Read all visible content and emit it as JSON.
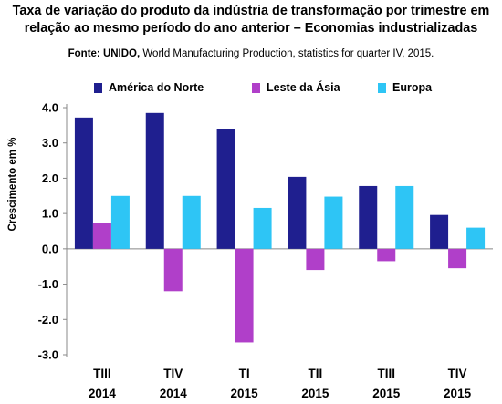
{
  "title": {
    "line1": "Taxa de variação do produto da indústria de transformação por trimestre em",
    "line2": "relação ao mesmo período do ano anterior – Economias industrializadas"
  },
  "source": {
    "lead": "Fonte: UNIDO,",
    "rest": " World Manufacturing  Production,  statistics for quarter IV, 2015."
  },
  "colors": {
    "america_do_norte": "#1f1f8f",
    "leste_da_asia": "#b03fc9",
    "europa": "#2ec5f5"
  },
  "chart_data": {
    "type": "bar",
    "ylabel": "Crescimento em %",
    "ylim": [
      -3.0,
      4.0
    ],
    "yticks": [
      "-3.0",
      "-2.0",
      "-1.0",
      "0.0",
      "1.0",
      "2.0",
      "3.0",
      "4.0"
    ],
    "ytick_values": [
      -3.0,
      -2.0,
      -1.0,
      0.0,
      1.0,
      2.0,
      3.0,
      4.0
    ],
    "legend_position": "top",
    "grid": false,
    "categories": [
      {
        "line1": "TIII",
        "line2": "2014"
      },
      {
        "line1": "TIV",
        "line2": "2014"
      },
      {
        "line1": "TI",
        "line2": "2015"
      },
      {
        "line1": "TII",
        "line2": "2015"
      },
      {
        "line1": "TIII",
        "line2": "2015"
      },
      {
        "line1": "TIV",
        "line2": "2015"
      }
    ],
    "series": [
      {
        "name": "América do Norte",
        "color": "#1f1f8f",
        "values": [
          3.72,
          3.85,
          3.39,
          2.04,
          1.78,
          0.96
        ]
      },
      {
        "name": "Leste da Ásia",
        "color": "#b03fc9",
        "values": [
          0.72,
          -1.2,
          -2.65,
          -0.6,
          -0.35,
          -0.55
        ]
      },
      {
        "name": "Europa",
        "color": "#2ec5f5",
        "values": [
          1.5,
          1.5,
          1.16,
          1.48,
          1.78,
          0.6
        ]
      }
    ]
  }
}
